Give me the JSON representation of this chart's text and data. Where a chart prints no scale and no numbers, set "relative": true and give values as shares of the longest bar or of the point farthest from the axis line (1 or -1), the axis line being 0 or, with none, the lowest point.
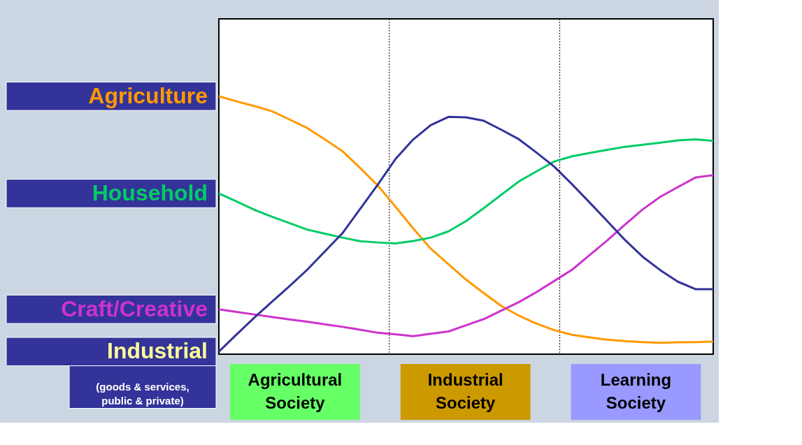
{
  "chart_data": {
    "type": "line",
    "relative": true,
    "tick_labels": false,
    "grid": false,
    "marker": "none",
    "line_style": "solid",
    "categories": [
      null,
      null,
      null,
      null,
      null,
      null,
      null,
      null,
      null,
      null,
      null,
      null,
      null,
      null,
      null,
      null,
      null,
      null,
      null,
      null,
      null,
      null,
      null,
      null,
      null,
      null,
      null,
      null,
      null
    ],
    "series": [
      {
        "name": "Agriculture",
        "color": "#ff9900",
        "values": [
          1.0,
          0.98,
          0.962,
          0.942,
          0.91,
          0.877,
          0.833,
          0.787,
          0.722,
          0.654,
          0.572,
          0.488,
          0.409,
          0.349,
          0.289,
          0.237,
          0.187,
          0.149,
          0.118,
          0.093,
          0.075,
          0.065,
          0.056,
          0.051,
          0.047,
          0.044,
          0.046,
          0.047,
          0.049
        ]
      },
      {
        "name": "Household",
        "color": "#00cc66",
        "values": [
          0.623,
          0.592,
          0.56,
          0.533,
          0.508,
          0.483,
          0.467,
          0.452,
          0.438,
          0.433,
          0.429,
          0.439,
          0.452,
          0.476,
          0.516,
          0.566,
          0.618,
          0.67,
          0.709,
          0.747,
          0.767,
          0.78,
          0.792,
          0.804,
          0.812,
          0.82,
          0.829,
          0.833,
          0.827
        ]
      },
      {
        "name": "Craft/Creative",
        "color": "#cc33cc",
        "values": [
          0.174,
          0.164,
          0.154,
          0.144,
          0.135,
          0.126,
          0.116,
          0.106,
          0.095,
          0.083,
          0.077,
          0.07,
          0.079,
          0.088,
          0.112,
          0.136,
          0.169,
          0.202,
          0.241,
          0.284,
          0.327,
          0.384,
          0.441,
          0.502,
          0.561,
          0.61,
          0.648,
          0.685,
          0.694
        ]
      },
      {
        "name": "Industrial",
        "color": "#333399",
        "values": [
          0.01,
          0.076,
          0.141,
          0.203,
          0.264,
          0.327,
          0.398,
          0.469,
          0.563,
          0.657,
          0.756,
          0.832,
          0.888,
          0.92,
          0.918,
          0.905,
          0.87,
          0.833,
          0.781,
          0.727,
          0.659,
          0.588,
          0.516,
          0.443,
          0.378,
          0.326,
          0.281,
          0.252,
          0.252
        ]
      }
    ],
    "annotations": [
      "(goods & services, public & private)",
      "Agricultural Society",
      "Industrial Society",
      "Learning Society"
    ]
  }
}
